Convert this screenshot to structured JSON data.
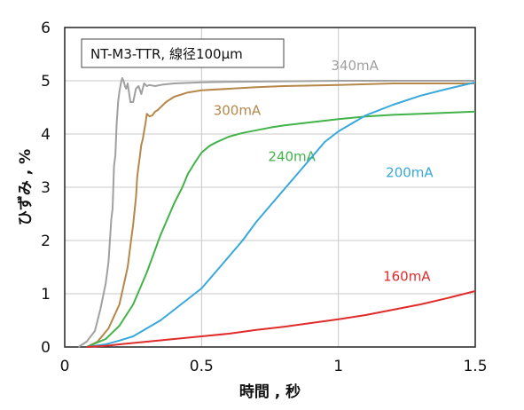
{
  "chart_data": {
    "type": "line",
    "title": "",
    "annotation": "NT-M3-TTR, 線径100μm",
    "xlabel": "時間 , 秒",
    "ylabel": "ひずみ , %",
    "xlim": [
      0,
      1.5
    ],
    "ylim": [
      0,
      6
    ],
    "xticks": [
      "0",
      "0.5",
      "1",
      "1.5"
    ],
    "yticks": [
      "0",
      "1",
      "2",
      "3",
      "4",
      "5",
      "6"
    ],
    "grid": true,
    "series": [
      {
        "name": "340mA",
        "color": "#a0a0a0",
        "label_at": [
          1.06,
          5.2
        ],
        "x": [
          0.05,
          0.08,
          0.11,
          0.13,
          0.15,
          0.16,
          0.17,
          0.175,
          0.18,
          0.185,
          0.19,
          0.195,
          0.2,
          0.205,
          0.21,
          0.215,
          0.22,
          0.225,
          0.23,
          0.24,
          0.25,
          0.26,
          0.27,
          0.28,
          0.29,
          0.3,
          0.31,
          0.33,
          0.36,
          0.4,
          0.5,
          0.6,
          0.8,
          1.0,
          1.2,
          1.5
        ],
        "y": [
          0.0,
          0.1,
          0.3,
          0.7,
          1.2,
          1.6,
          2.4,
          2.6,
          3.4,
          3.6,
          4.2,
          4.6,
          4.8,
          4.95,
          5.05,
          5.0,
          4.9,
          4.85,
          4.95,
          4.6,
          4.6,
          4.85,
          4.9,
          4.75,
          4.95,
          4.9,
          4.92,
          4.9,
          4.93,
          4.95,
          4.97,
          4.98,
          4.99,
          5.0,
          5.0,
          5.0
        ]
      },
      {
        "name": "300mA",
        "color": "#b5874a",
        "label_at": [
          0.63,
          4.36
        ],
        "x": [
          0.08,
          0.12,
          0.16,
          0.2,
          0.23,
          0.245,
          0.25,
          0.26,
          0.265,
          0.27,
          0.275,
          0.28,
          0.285,
          0.29,
          0.295,
          0.3,
          0.31,
          0.32,
          0.33,
          0.34,
          0.35,
          0.37,
          0.4,
          0.45,
          0.5,
          0.6,
          0.7,
          0.8,
          1.0,
          1.2,
          1.5
        ],
        "y": [
          0.0,
          0.1,
          0.35,
          0.8,
          1.5,
          2.1,
          2.3,
          2.8,
          3.2,
          3.4,
          3.6,
          3.8,
          3.9,
          4.05,
          4.2,
          4.38,
          4.33,
          4.35,
          4.42,
          4.45,
          4.5,
          4.6,
          4.7,
          4.78,
          4.82,
          4.85,
          4.88,
          4.9,
          4.92,
          4.95,
          4.95
        ]
      },
      {
        "name": "240mA",
        "color": "#41b349",
        "label_at": [
          0.83,
          3.49
        ],
        "x": [
          0.08,
          0.15,
          0.2,
          0.25,
          0.3,
          0.35,
          0.4,
          0.43,
          0.45,
          0.48,
          0.5,
          0.53,
          0.56,
          0.6,
          0.65,
          0.7,
          0.75,
          0.8,
          0.9,
          1.0,
          1.1,
          1.2,
          1.3,
          1.4,
          1.5
        ],
        "y": [
          0.0,
          0.15,
          0.4,
          0.8,
          1.4,
          2.1,
          2.7,
          3.0,
          3.25,
          3.5,
          3.65,
          3.78,
          3.86,
          3.95,
          4.02,
          4.07,
          4.12,
          4.16,
          4.22,
          4.28,
          4.33,
          4.36,
          4.38,
          4.4,
          4.42
        ]
      },
      {
        "name": "200mA",
        "color": "#38a8dc",
        "label_at": [
          1.26,
          3.19
        ],
        "x": [
          0.08,
          0.15,
          0.2,
          0.25,
          0.3,
          0.35,
          0.4,
          0.45,
          0.5,
          0.55,
          0.6,
          0.65,
          0.7,
          0.75,
          0.8,
          0.85,
          0.9,
          0.95,
          1.0,
          1.05,
          1.1,
          1.2,
          1.3,
          1.4,
          1.5
        ],
        "y": [
          0.0,
          0.05,
          0.12,
          0.2,
          0.35,
          0.5,
          0.7,
          0.9,
          1.1,
          1.4,
          1.7,
          2.0,
          2.35,
          2.65,
          2.95,
          3.25,
          3.55,
          3.85,
          4.05,
          4.2,
          4.35,
          4.55,
          4.72,
          4.85,
          4.97
        ]
      },
      {
        "name": "160mA",
        "color": "#e02b2b",
        "label_at": [
          1.25,
          1.24
        ],
        "x": [
          0.08,
          0.15,
          0.2,
          0.3,
          0.4,
          0.5,
          0.6,
          0.7,
          0.8,
          0.9,
          1.0,
          1.1,
          1.2,
          1.3,
          1.4,
          1.5
        ],
        "y": [
          0.0,
          0.02,
          0.05,
          0.1,
          0.15,
          0.2,
          0.25,
          0.32,
          0.38,
          0.45,
          0.52,
          0.6,
          0.7,
          0.8,
          0.92,
          1.05
        ]
      }
    ]
  }
}
